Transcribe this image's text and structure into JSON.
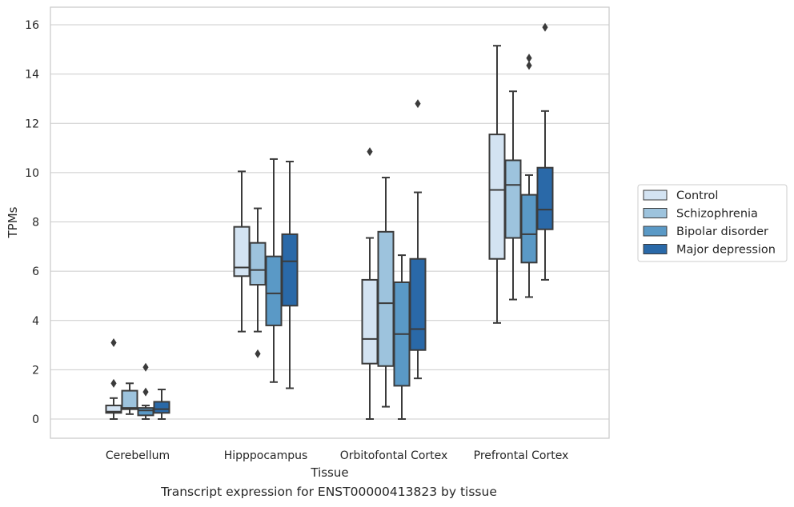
{
  "caption": "Transcript expression for ENST00000413823 by tissue",
  "chart_data": {
    "type": "boxplot",
    "title": "",
    "xlabel": "Tissue",
    "ylabel": "TPMs",
    "ylim": [
      -0.8,
      16.7
    ],
    "yticks": [
      0,
      2,
      4,
      6,
      8,
      10,
      12,
      14,
      16
    ],
    "grid": true,
    "legend_position": "right",
    "categories": [
      "Cerebellum",
      "Hipppocampus",
      "Orbitofontal Cortex",
      "Prefrontal Cortex"
    ],
    "series": [
      {
        "name": "Control",
        "color": "#d3e3f2",
        "boxes": [
          {
            "whislo": 0.0,
            "q1": 0.25,
            "med": 0.3,
            "q3": 0.55,
            "whishi": 0.85,
            "fliers": [
              3.1,
              1.45
            ]
          },
          {
            "whislo": 3.55,
            "q1": 5.8,
            "med": 6.15,
            "q3": 7.8,
            "whishi": 10.05,
            "fliers": []
          },
          {
            "whislo": 0.0,
            "q1": 2.25,
            "med": 3.25,
            "q3": 5.65,
            "whishi": 7.35,
            "fliers": [
              10.85
            ]
          },
          {
            "whislo": 3.9,
            "q1": 6.5,
            "med": 9.3,
            "q3": 11.55,
            "whishi": 15.15,
            "fliers": []
          }
        ]
      },
      {
        "name": "Schizophrenia",
        "color": "#9dc3dd",
        "boxes": [
          {
            "whislo": 0.2,
            "q1": 0.4,
            "med": 0.45,
            "q3": 1.15,
            "whishi": 1.45,
            "fliers": []
          },
          {
            "whislo": 3.55,
            "q1": 5.45,
            "med": 6.05,
            "q3": 7.15,
            "whishi": 8.55,
            "fliers": [
              2.65
            ]
          },
          {
            "whislo": 0.5,
            "q1": 2.15,
            "med": 4.7,
            "q3": 7.6,
            "whishi": 9.8,
            "fliers": []
          },
          {
            "whislo": 4.85,
            "q1": 7.35,
            "med": 9.5,
            "q3": 10.5,
            "whishi": 13.3,
            "fliers": []
          }
        ]
      },
      {
        "name": "Bipolar disorder",
        "color": "#5a99c6",
        "boxes": [
          {
            "whislo": 0.0,
            "q1": 0.15,
            "med": 0.35,
            "q3": 0.45,
            "whishi": 0.55,
            "fliers": [
              2.1,
              1.1
            ]
          },
          {
            "whislo": 1.5,
            "q1": 3.8,
            "med": 5.1,
            "q3": 6.6,
            "whishi": 10.55,
            "fliers": []
          },
          {
            "whislo": 0.0,
            "q1": 1.35,
            "med": 3.45,
            "q3": 5.55,
            "whishi": 6.65,
            "fliers": []
          },
          {
            "whislo": 4.95,
            "q1": 6.35,
            "med": 7.5,
            "q3": 9.1,
            "whishi": 9.9,
            "fliers": [
              14.65,
              14.35
            ]
          }
        ]
      },
      {
        "name": "Major depression",
        "color": "#2a69a8",
        "boxes": [
          {
            "whislo": 0.0,
            "q1": 0.25,
            "med": 0.4,
            "q3": 0.7,
            "whishi": 1.2,
            "fliers": []
          },
          {
            "whislo": 1.25,
            "q1": 4.6,
            "med": 6.4,
            "q3": 7.5,
            "whishi": 10.45,
            "fliers": []
          },
          {
            "whislo": 1.65,
            "q1": 2.8,
            "med": 3.65,
            "q3": 6.5,
            "whishi": 9.2,
            "fliers": [
              12.8
            ]
          },
          {
            "whislo": 5.65,
            "q1": 7.7,
            "med": 8.5,
            "q3": 10.2,
            "whishi": 12.5,
            "fliers": [
              15.9
            ]
          }
        ]
      }
    ]
  }
}
